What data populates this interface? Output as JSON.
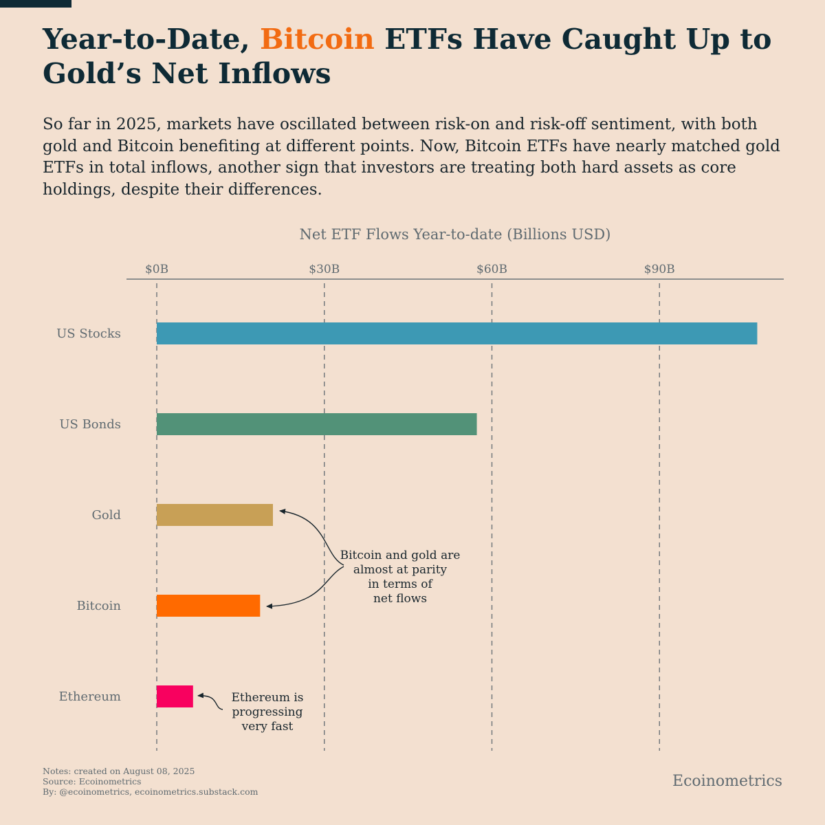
{
  "header": {
    "title_part1": "Year-to-Date, ",
    "title_highlight": "Bitcoin",
    "title_part2": " ETFs Have Caught Up to Gold’s Net Inflows",
    "subtitle": "So far in 2025, markets have oscillated between risk-on and risk-off sentiment, with both gold and Bitcoin benefiting at different points. Now, Bitcoin ETFs have nearly matched gold ETFs in total inflows, another sign that investors are treating both hard assets as core holdings, despite their differences."
  },
  "colors": {
    "background": "#f3e0d0",
    "title": "#0e2a35",
    "highlight": "#f26b12",
    "muted_text": "#5f6a70"
  },
  "chart_data": {
    "type": "bar",
    "orientation": "horizontal",
    "title": "Net ETF Flows Year-to-date (Billions USD)",
    "categories": [
      "US Stocks",
      "US Bonds",
      "Gold",
      "Bitcoin",
      "Ethereum"
    ],
    "values": [
      107.5,
      57.3,
      20.8,
      18.5,
      6.5
    ],
    "colors": [
      "#3d99b4",
      "#529278",
      "#c8a056",
      "#ff6a00",
      "#f8015f"
    ],
    "xlim": [
      0,
      112
    ],
    "ticks": [
      0,
      30,
      60,
      90
    ],
    "tick_labels": [
      "$0B",
      "$30B",
      "$60B",
      "$90B"
    ],
    "grid": "vertical dashed",
    "annotations": [
      {
        "lines": [
          "Bitcoin and gold are",
          "almost at parity",
          "in terms of",
          "net flows"
        ],
        "targets": [
          "Gold",
          "Bitcoin"
        ]
      },
      {
        "lines": [
          "Ethereum is",
          "progressing",
          "very fast"
        ],
        "targets": [
          "Ethereum"
        ]
      }
    ]
  },
  "footer": {
    "notes": "Notes: created on August 08, 2025",
    "source": "Source: Ecoinometrics",
    "by": "By: @ecoinometrics, ecoinometrics.substack.com",
    "brand": "Ecoinometrics"
  }
}
